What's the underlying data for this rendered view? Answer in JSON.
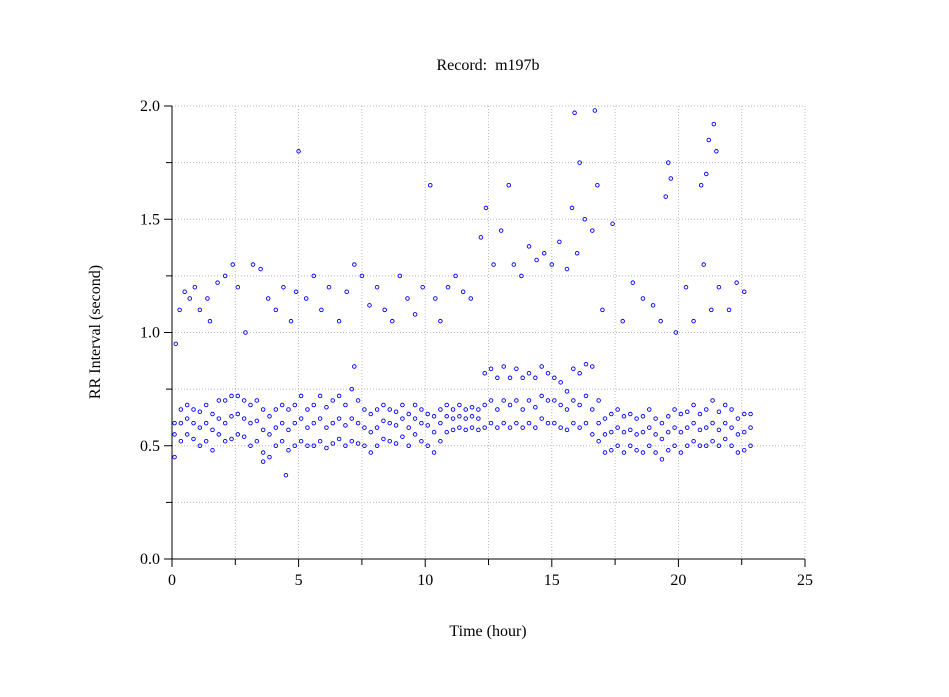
{
  "chart_data": {
    "type": "scatter",
    "title": "Record:  m197b",
    "x_label": "Time (hour)",
    "y_label": "RR Interval (second)",
    "xlim": [
      0,
      25
    ],
    "ylim": [
      0,
      2
    ],
    "xticks": [
      0,
      5,
      10,
      15,
      20,
      25
    ],
    "xminor": [
      2.5,
      7.5,
      12.5,
      17.5,
      22.5
    ],
    "yticks": [
      {
        "value": 0,
        "label": "0.0"
      },
      0.5,
      {
        "value": 1,
        "label": "1.0"
      },
      1.5,
      {
        "value": 2,
        "label": "2.0"
      }
    ],
    "yminor": [
      0.25,
      0.75,
      1.25,
      1.75
    ],
    "grid": true,
    "x": [
      0.1,
      0.35,
      0.6,
      0.85,
      1.1,
      1.35,
      1.6,
      1.85,
      2.1,
      2.35,
      2.6,
      2.85,
      3.1,
      3.35,
      3.6,
      3.85,
      4.1,
      4.35,
      4.6,
      4.85,
      5.1,
      5.35,
      5.6,
      5.85,
      6.1,
      6.35,
      6.6,
      6.85,
      7.1,
      7.35,
      7.6,
      7.85,
      8.1,
      8.35,
      8.6,
      8.85,
      9.1,
      9.35,
      9.6,
      9.85,
      10.1,
      10.35,
      10.6,
      10.85,
      11.1,
      11.35,
      11.6,
      11.85,
      12.1,
      12.35,
      12.6,
      12.85,
      13.1,
      13.35,
      13.6,
      13.85,
      14.1,
      14.35,
      14.6,
      14.85,
      15.1,
      15.35,
      15.6,
      15.85,
      16.1,
      16.35,
      16.6,
      16.85,
      17.1,
      17.35,
      17.6,
      17.85,
      18.1,
      18.35,
      18.6,
      18.85,
      19.1,
      19.35,
      19.6,
      19.85,
      20.1,
      20.35,
      20.6,
      20.85,
      21.1,
      21.35,
      21.6,
      21.85,
      22.1,
      22.35,
      22.6,
      22.85
    ],
    "series": [
      {
        "color": "#0000ff",
        "values": [
          0.45,
          0.52,
          0.55,
          0.53,
          0.5,
          0.52,
          0.48,
          0.55,
          0.52,
          0.53,
          0.55,
          0.54,
          0.5,
          0.52,
          0.47,
          0.45,
          0.5,
          0.52,
          0.48,
          0.5,
          0.52,
          0.5,
          0.5,
          0.52,
          0.49,
          0.51,
          0.53,
          0.5,
          0.52,
          0.51,
          0.5,
          0.47,
          0.5,
          0.53,
          0.52,
          0.51,
          0.54,
          0.5,
          0.55,
          0.52,
          0.5,
          0.47,
          0.52,
          0.56,
          0.57,
          0.58,
          0.57,
          0.58,
          0.57,
          0.58,
          0.6,
          0.58,
          0.6,
          0.58,
          0.6,
          0.58,
          0.6,
          0.58,
          0.62,
          0.6,
          0.6,
          0.58,
          0.57,
          0.6,
          0.58,
          0.6,
          0.55,
          0.52,
          0.47,
          0.48,
          0.5,
          0.47,
          0.5,
          0.48,
          0.47,
          0.5,
          0.47,
          0.44,
          0.48,
          0.5,
          0.47,
          0.5,
          0.52,
          0.5,
          0.5,
          0.52,
          0.5,
          0.53,
          0.5,
          0.47,
          0.48,
          0.5
        ]
      },
      {
        "color": "#0000ff",
        "values": [
          0.55,
          0.6,
          0.62,
          0.6,
          0.58,
          0.6,
          0.57,
          0.62,
          0.6,
          0.63,
          0.64,
          0.62,
          0.6,
          0.61,
          0.57,
          0.55,
          0.58,
          0.6,
          0.57,
          0.6,
          0.62,
          0.58,
          0.6,
          0.62,
          0.58,
          0.6,
          0.62,
          0.59,
          0.62,
          0.6,
          0.58,
          0.56,
          0.58,
          0.61,
          0.6,
          0.59,
          0.62,
          0.58,
          0.62,
          0.6,
          0.59,
          0.56,
          0.6,
          0.63,
          0.62,
          0.63,
          0.62,
          0.63,
          0.62,
          0.68,
          0.7,
          0.66,
          0.7,
          0.68,
          0.7,
          0.66,
          0.7,
          0.67,
          0.72,
          0.7,
          0.7,
          0.68,
          0.66,
          0.7,
          0.68,
          0.72,
          0.66,
          0.6,
          0.55,
          0.56,
          0.58,
          0.56,
          0.57,
          0.55,
          0.56,
          0.58,
          0.55,
          0.53,
          0.56,
          0.58,
          0.56,
          0.58,
          0.6,
          0.57,
          0.58,
          0.6,
          0.57,
          0.6,
          0.58,
          0.55,
          0.56,
          0.58
        ]
      },
      {
        "color": "#0000ff",
        "values": [
          0.6,
          0.66,
          0.68,
          0.66,
          0.65,
          0.68,
          0.64,
          0.7,
          0.7,
          0.72,
          0.72,
          0.7,
          0.68,
          0.7,
          0.66,
          0.63,
          0.66,
          0.68,
          0.66,
          0.68,
          0.72,
          0.66,
          0.68,
          0.72,
          0.67,
          0.7,
          0.72,
          0.68,
          0.75,
          0.7,
          0.66,
          0.64,
          0.66,
          0.68,
          0.66,
          0.65,
          0.68,
          0.64,
          0.68,
          0.66,
          0.64,
          0.63,
          0.66,
          0.68,
          0.66,
          0.68,
          0.66,
          0.67,
          0.66,
          0.82,
          0.84,
          0.8,
          0.85,
          0.8,
          0.84,
          0.8,
          0.82,
          0.8,
          0.85,
          0.82,
          0.8,
          0.78,
          0.74,
          0.84,
          0.82,
          0.86,
          0.85,
          0.7,
          0.62,
          0.64,
          0.66,
          0.63,
          0.64,
          0.62,
          0.63,
          0.66,
          0.62,
          0.6,
          0.63,
          0.66,
          0.64,
          0.65,
          0.68,
          0.64,
          0.66,
          0.7,
          0.65,
          0.68,
          0.66,
          0.62,
          0.64,
          0.64
        ]
      },
      {
        "color": "#0000ff",
        "x": [
          0.15,
          0.3,
          0.5,
          0.7,
          0.9,
          1.1,
          1.4,
          1.5,
          1.8,
          2.1,
          2.4,
          2.6,
          2.9,
          3.2,
          3.5,
          3.8,
          4.1,
          4.4,
          4.7,
          4.9,
          5.0,
          5.3,
          5.6,
          5.9,
          6.2,
          6.6,
          6.9,
          7.2,
          7.5,
          7.8,
          8.1,
          8.4,
          8.7,
          9.0,
          9.3,
          9.6,
          9.9,
          10.2,
          10.4,
          10.6,
          10.9,
          11.2,
          11.5,
          11.8,
          12.2,
          12.4,
          12.7,
          13.0,
          13.3,
          13.5,
          13.8,
          14.1,
          14.4,
          14.7,
          15.0,
          15.3,
          15.6,
          15.8,
          15.9,
          16.0,
          16.1,
          16.3,
          16.6,
          16.7,
          16.8,
          17.0,
          17.4,
          17.8,
          18.2,
          18.6,
          19.0,
          19.3,
          19.5,
          19.6,
          19.7,
          19.9,
          20.3,
          20.6,
          20.9,
          21.0,
          21.1,
          21.2,
          21.3,
          21.4,
          21.5,
          21.6,
          22.0,
          22.3,
          22.6,
          4.5,
          3.6,
          7.2
        ],
        "values": [
          0.95,
          1.1,
          1.18,
          1.15,
          1.2,
          1.1,
          1.15,
          1.05,
          1.22,
          1.25,
          1.3,
          1.2,
          1.0,
          1.3,
          1.28,
          1.15,
          1.1,
          1.2,
          1.05,
          1.18,
          1.8,
          1.15,
          1.25,
          1.1,
          1.2,
          1.05,
          1.18,
          1.3,
          1.25,
          1.12,
          1.2,
          1.1,
          1.05,
          1.25,
          1.15,
          1.08,
          1.2,
          1.65,
          1.15,
          1.05,
          1.2,
          1.25,
          1.18,
          1.15,
          1.42,
          1.55,
          1.3,
          1.45,
          1.65,
          1.3,
          1.25,
          1.38,
          1.32,
          1.35,
          1.3,
          1.4,
          1.28,
          1.55,
          1.97,
          1.35,
          1.75,
          1.5,
          1.45,
          1.98,
          1.65,
          1.1,
          1.48,
          1.05,
          1.22,
          1.15,
          1.12,
          1.05,
          1.6,
          1.75,
          1.68,
          1.0,
          1.2,
          1.05,
          1.65,
          1.3,
          1.7,
          1.85,
          1.1,
          1.92,
          1.8,
          1.2,
          1.1,
          1.22,
          1.18,
          0.37,
          0.43,
          0.85
        ]
      }
    ]
  }
}
